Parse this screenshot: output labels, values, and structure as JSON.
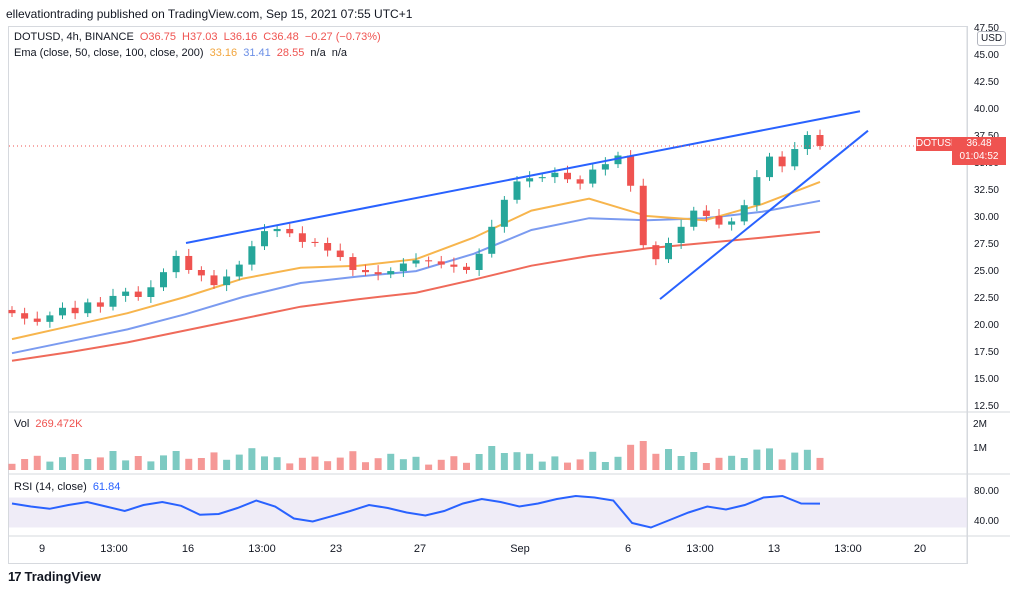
{
  "header": {
    "publisher": "ellevationtrading published on TradingView.com, Sep 15, 2021 07:55 UTC+1"
  },
  "legend": {
    "symbol": "DOTUSD, 4h, BINANCE",
    "o": "O36.75",
    "h": "H37.03",
    "l": "L36.16",
    "c": "C36.48",
    "chg": "−0.27 (−0.73%)",
    "ema_label": "Ema (close, 50, close, 100, close, 200)",
    "ema50": "33.16",
    "ema100": "31.41",
    "ema200": "28.55",
    "na1": "n/a",
    "na2": "n/a",
    "vol_label": "Vol",
    "vol_value": "269.472K",
    "rsi_label": "RSI (14, close)",
    "rsi_value": "61.84"
  },
  "price_tag": {
    "symbol": "DOTUSD",
    "price": "36.48",
    "countdown": "01:04:52"
  },
  "currency_badge": "USD",
  "footer": {
    "brand": "TradingView",
    "logo": "17"
  },
  "colors": {
    "up": "#26a69a",
    "down": "#ef5350",
    "trendline": "#2962ff",
    "ema50": "#f7b54d",
    "ema100": "#7b9bf0",
    "ema200": "#ef6a5a",
    "rsi": "#2962ff"
  },
  "chart_data": {
    "type": "candlestick",
    "title": "DOTUSD, 4h, BINANCE",
    "price_axis": {
      "ticks": [
        "47.50",
        "45.00",
        "42.50",
        "40.00",
        "37.50",
        "35.00",
        "32.50",
        "30.00",
        "27.50",
        "25.00",
        "22.50",
        "20.00",
        "17.50",
        "15.00",
        "12.50"
      ],
      "range": [
        12.5,
        47.5
      ]
    },
    "volume_axis": {
      "ticks": [
        "2M",
        "1M"
      ]
    },
    "rsi_axis": {
      "ticks": [
        "80.00",
        "40.00"
      ],
      "range": [
        20,
        100
      ]
    },
    "time_axis": {
      "ticks": [
        "9",
        "13:00",
        "16",
        "13:00",
        "23",
        "27",
        "Sep",
        "6",
        "13:00",
        "13",
        "13:00",
        "20"
      ]
    },
    "close_series": [
      21.0,
      20.5,
      20.2,
      20.8,
      21.5,
      21.0,
      22.0,
      21.6,
      22.6,
      23.0,
      22.5,
      23.4,
      24.8,
      26.3,
      25.0,
      24.5,
      23.6,
      24.4,
      25.5,
      27.2,
      28.6,
      28.8,
      28.4,
      27.6,
      27.5,
      26.8,
      26.2,
      25.0,
      24.8,
      24.6,
      24.9,
      25.6,
      25.9,
      25.8,
      25.5,
      25.3,
      25.0,
      26.5,
      29.0,
      31.5,
      33.2,
      33.5,
      33.6,
      34.0,
      33.4,
      33.0,
      34.3,
      34.8,
      35.6,
      32.8,
      27.3,
      26.0,
      27.5,
      29.0,
      30.5,
      30.0,
      29.2,
      29.5,
      31.0,
      33.6,
      35.5,
      34.6,
      36.2,
      37.5,
      36.48
    ],
    "ema50": [
      18.6,
      19.8,
      21.0,
      22.5,
      24.2,
      25.2,
      25.4,
      26.0,
      28.0,
      30.5,
      31.6,
      30.0,
      29.6,
      31.1,
      33.16
    ],
    "ema100": [
      17.3,
      18.4,
      19.5,
      20.9,
      22.5,
      23.8,
      24.4,
      24.9,
      26.5,
      28.7,
      29.8,
      29.6,
      29.8,
      30.4,
      31.41
    ],
    "ema200": [
      16.6,
      17.4,
      18.3,
      19.4,
      20.5,
      21.6,
      22.3,
      22.9,
      24.1,
      25.4,
      26.3,
      27.0,
      27.5,
      28.0,
      28.55
    ],
    "rsi": [
      62,
      58,
      55,
      60,
      64,
      58,
      52,
      60,
      64,
      59,
      47,
      48,
      56,
      66,
      58,
      42,
      38,
      45,
      52,
      60,
      56,
      50,
      46,
      52,
      62,
      68,
      64,
      58,
      62,
      68,
      72,
      70,
      66,
      36,
      30,
      40,
      50,
      58,
      54,
      60,
      70,
      72,
      62,
      61.84
    ],
    "rising_wedge": {
      "upper_start": [
        16.5,
        27.5
      ],
      "upper_end": [
        17.2,
        39.7
      ],
      "lower_start": [
        9.4,
        22.3
      ],
      "lower_end": [
        17.4,
        37.9
      ]
    }
  }
}
